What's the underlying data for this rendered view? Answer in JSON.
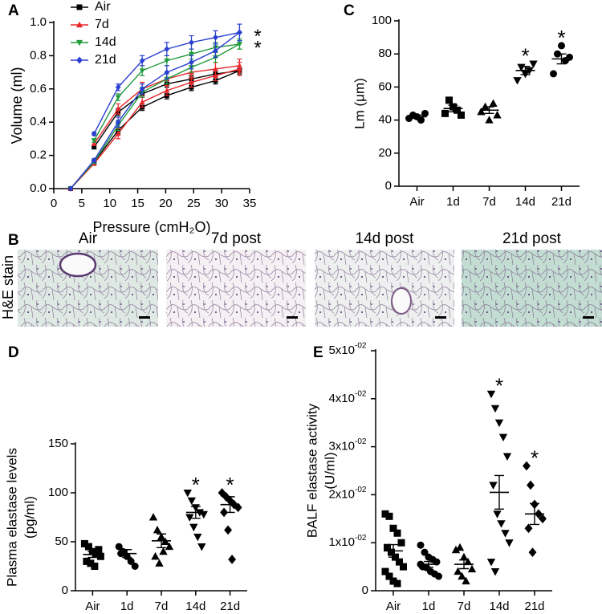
{
  "chart_data": [
    {
      "type": "line",
      "panel": "A",
      "xlabel": "Pressure (cmH₂O)",
      "ylabel": "Volume (ml)",
      "x": [
        3,
        7.2,
        11.5,
        15.8,
        20.2,
        24.6,
        28.9,
        33.2
      ],
      "xlim": [
        0,
        35
      ],
      "xticks": [
        0,
        5,
        10,
        15,
        20,
        25,
        30,
        35
      ],
      "ylim": [
        0,
        1
      ],
      "yticks": [
        {
          "value": 0,
          "label": "0.0"
        },
        0.2,
        0.4,
        0.6,
        0.8,
        {
          "value": 1,
          "label": "1.0"
        }
      ],
      "series": [
        {
          "name": "Air",
          "color": "#000000",
          "marker": "square",
          "star": null,
          "inflation": [
            0,
            0.16,
            0.35,
            0.49,
            0.56,
            0.61,
            0.65,
            0.71
          ],
          "inflation_err": [
            0,
            0.01,
            0.02,
            0.02,
            0.02,
            0.02,
            0.02,
            0.02
          ],
          "deflation": [
            null,
            0.25,
            0.46,
            0.57,
            0.63,
            0.66,
            0.69,
            0.71
          ],
          "deflation_err": [
            null,
            0.01,
            0.02,
            0.02,
            0.02,
            0.02,
            0.02,
            0.02
          ]
        },
        {
          "name": "7d",
          "color": "#e8262a",
          "marker": "triangle",
          "star": null,
          "inflation": [
            0,
            0.15,
            0.33,
            0.52,
            0.59,
            0.64,
            0.68,
            0.72
          ],
          "inflation_err": [
            0,
            0.01,
            0.03,
            0.03,
            0.03,
            0.03,
            0.03,
            0.04
          ],
          "deflation": [
            null,
            0.27,
            0.48,
            0.6,
            0.66,
            0.7,
            0.72,
            0.74
          ],
          "deflation_err": [
            null,
            0.01,
            0.03,
            0.04,
            0.04,
            0.04,
            0.04,
            0.04
          ]
        },
        {
          "name": "14d",
          "color": "#1f9a3c",
          "marker": "invtriangle",
          "star": "*",
          "inflation": [
            0,
            0.16,
            0.38,
            0.58,
            0.66,
            0.73,
            0.79,
            0.87
          ],
          "inflation_err": [
            0,
            0.01,
            0.03,
            0.03,
            0.03,
            0.03,
            0.03,
            0.03
          ],
          "deflation": [
            null,
            0.29,
            0.55,
            0.71,
            0.77,
            0.81,
            0.85,
            0.87
          ],
          "deflation_err": [
            null,
            0.01,
            0.02,
            0.03,
            0.03,
            0.03,
            0.03,
            0.03
          ]
        },
        {
          "name": "21d",
          "color": "#2a3fd0",
          "marker": "diamond",
          "star": "*",
          "inflation": [
            0,
            0.17,
            0.4,
            0.6,
            0.7,
            0.76,
            0.83,
            0.94
          ],
          "inflation_err": [
            0,
            0.01,
            0.03,
            0.03,
            0.04,
            0.04,
            0.04,
            0.05
          ],
          "deflation": [
            null,
            0.33,
            0.61,
            0.77,
            0.84,
            0.88,
            0.91,
            0.94
          ],
          "deflation_err": [
            null,
            0.01,
            0.02,
            0.03,
            0.04,
            0.04,
            0.04,
            0.05
          ]
        }
      ]
    },
    {
      "type": "dot",
      "panel": "C",
      "ylabel": [
        "Lm (μm)"
      ],
      "categories": [
        "Air",
        "1d",
        "7d",
        "14d",
        "21d"
      ],
      "markers": [
        "circle",
        "square",
        "triangle",
        "invtriangle",
        "circle"
      ],
      "ylim": [
        0,
        100
      ],
      "yticks": [
        0,
        20,
        40,
        60,
        80,
        100
      ],
      "values": [
        [
          41,
          43,
          42,
          40,
          44
        ],
        [
          44,
          52,
          48,
          46,
          43
        ],
        [
          45,
          48,
          40,
          50,
          43
        ],
        [
          64,
          72,
          68,
          70,
          74
        ],
        [
          68,
          80,
          85,
          76,
          78
        ]
      ],
      "mean": [
        42,
        47,
        46,
        70,
        77
      ],
      "sem": [
        1,
        2,
        2,
        2.5,
        3
      ],
      "stars": [
        null,
        null,
        null,
        "*",
        "*"
      ]
    },
    {
      "type": "dot",
      "panel": "D",
      "ylabel": [
        "Plasma elastase levels",
        "(pg/ml)"
      ],
      "categories": [
        "Air",
        "1d",
        "7d",
        "14d",
        "21d"
      ],
      "markers": [
        "square",
        "circle",
        "triangle",
        "invtriangle",
        "diamond"
      ],
      "ylim": [
        0,
        150
      ],
      "yticks": [
        0,
        50,
        100,
        150
      ],
      "values": [
        [
          48,
          45,
          40,
          38,
          35,
          30,
          28,
          25,
          42
        ],
        [
          45,
          40,
          35,
          30,
          25,
          38
        ],
        [
          75,
          62,
          55,
          50,
          45,
          35,
          28,
          40
        ],
        [
          100,
          92,
          85,
          80,
          78,
          75,
          65,
          55,
          45
        ],
        [
          100,
          96,
          92,
          88,
          85,
          80,
          62,
          32
        ]
      ],
      "mean": [
        37,
        38,
        51,
        80,
        88
      ],
      "sem": [
        3,
        4,
        7,
        6,
        8
      ],
      "stars": [
        null,
        null,
        null,
        "*",
        "*"
      ]
    },
    {
      "type": "dot",
      "panel": "E",
      "ylabel": [
        "BALF elastase activity",
        "(U/ml)"
      ],
      "categories": [
        "Air",
        "1d",
        "7d",
        "14d",
        "21d"
      ],
      "markers": [
        "square",
        "circle",
        "triangle",
        "invtriangle",
        "diamond"
      ],
      "ylim": [
        0,
        0.05
      ],
      "yticks": [
        0,
        {
          "value": 0.01,
          "label": "1x10",
          "exp": "-02"
        },
        {
          "value": 0.02,
          "label": "2x10",
          "exp": "-02"
        },
        {
          "value": 0.03,
          "label": "3x10",
          "exp": "-02"
        },
        {
          "value": 0.04,
          "label": "4x10",
          "exp": "-02"
        },
        {
          "value": 0.05,
          "label": "5x10",
          "exp": "-02"
        }
      ],
      "values": [
        [
          0.016,
          0.0155,
          0.013,
          0.012,
          0.01,
          0.009,
          0.008,
          0.007,
          0.006,
          0.005,
          0.004,
          0.003,
          0.002,
          0.0015
        ],
        [
          0.0095,
          0.008,
          0.007,
          0.0065,
          0.006,
          0.005,
          0.0048,
          0.004,
          0.0035,
          0.003,
          0.0055
        ],
        [
          0.0085,
          0.009,
          0.007,
          0.006,
          0.0045,
          0.004,
          0.003,
          0.002
        ],
        [
          0.041,
          0.038,
          0.035,
          0.032,
          0.028,
          0.022,
          0.016,
          0.014,
          0.012,
          0.01,
          0.006,
          0.004
        ],
        [
          0.026,
          0.022,
          0.018,
          0.016,
          0.015,
          0.013,
          0.008
        ]
      ],
      "mean": [
        0.0083,
        0.0055,
        0.0055,
        0.0205,
        0.016
      ],
      "sem": [
        0.0013,
        0.0006,
        0.0009,
        0.0035,
        0.0022
      ],
      "stars": [
        null,
        null,
        null,
        "*",
        "*"
      ]
    }
  ],
  "histology": {
    "panel": "B",
    "ylabel": "H&E stain",
    "titles": [
      "Air",
      "7d post",
      "14d post",
      "21d post"
    ]
  }
}
